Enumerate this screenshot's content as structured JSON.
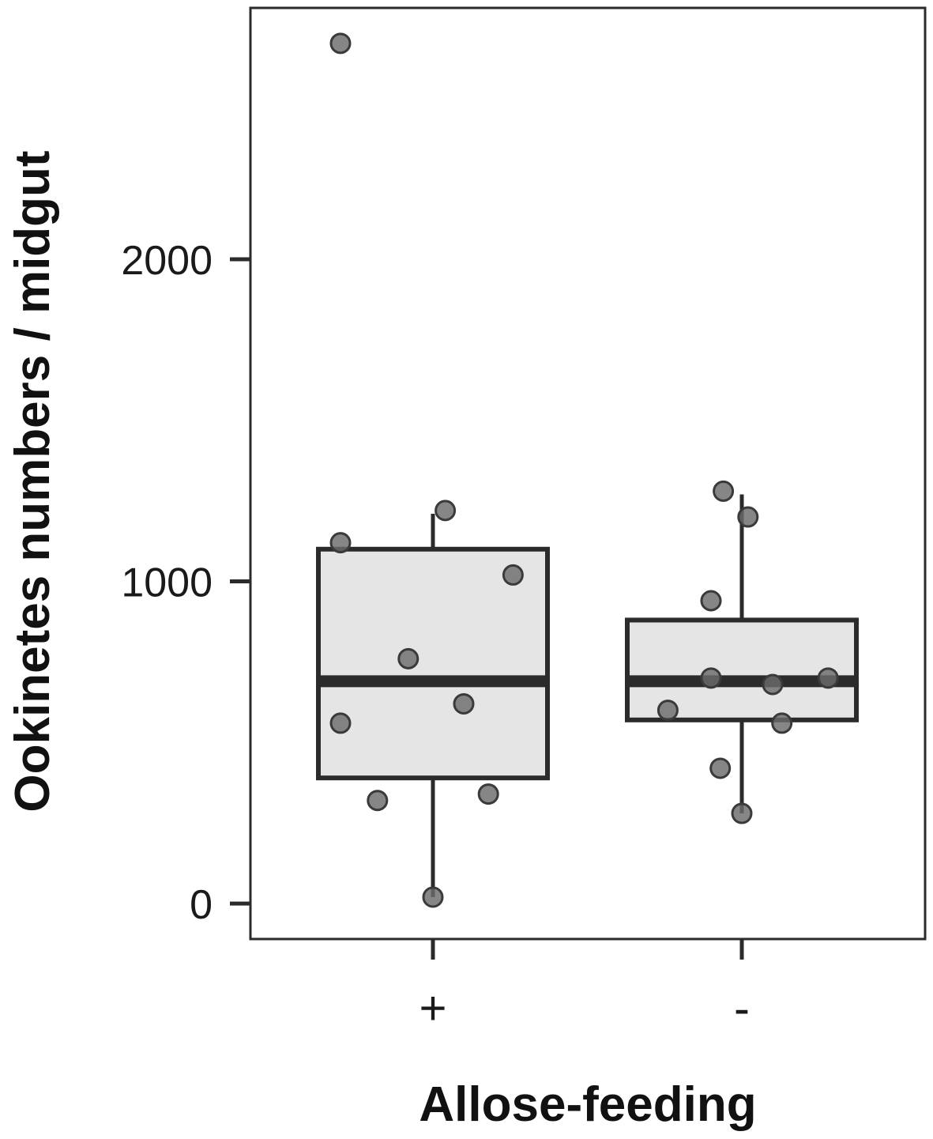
{
  "chart_data": {
    "type": "box",
    "xlabel": "Allose-feeding",
    "ylabel": "Ookinetes numbers / midgut",
    "categories": [
      "+",
      "-"
    ],
    "ylim": [
      -110,
      2780
    ],
    "yticks": [
      0,
      1000,
      2000
    ],
    "grid": false,
    "legend": "none",
    "boxes": [
      {
        "category": "+",
        "whisker_low": 20,
        "q1": 390,
        "median": 690,
        "q3": 1100,
        "whisker_high": 1210
      },
      {
        "category": "-",
        "whisker_low": 280,
        "q1": 570,
        "median": 690,
        "q3": 880,
        "whisker_high": 1270
      }
    ],
    "points": [
      {
        "category": "+",
        "jitter": -0.3,
        "y": 2670
      },
      {
        "category": "+",
        "jitter": 0.04,
        "y": 1220
      },
      {
        "category": "+",
        "jitter": -0.3,
        "y": 1120
      },
      {
        "category": "+",
        "jitter": 0.26,
        "y": 1020
      },
      {
        "category": "+",
        "jitter": -0.08,
        "y": 760
      },
      {
        "category": "+",
        "jitter": 0.1,
        "y": 620
      },
      {
        "category": "+",
        "jitter": -0.3,
        "y": 560
      },
      {
        "category": "+",
        "jitter": -0.18,
        "y": 320
      },
      {
        "category": "+",
        "jitter": 0.18,
        "y": 340
      },
      {
        "category": "+",
        "jitter": 0.0,
        "y": 20
      },
      {
        "category": "-",
        "jitter": -0.06,
        "y": 1280
      },
      {
        "category": "-",
        "jitter": 0.02,
        "y": 1200
      },
      {
        "category": "-",
        "jitter": -0.1,
        "y": 940
      },
      {
        "category": "-",
        "jitter": -0.1,
        "y": 700
      },
      {
        "category": "-",
        "jitter": 0.1,
        "y": 680
      },
      {
        "category": "-",
        "jitter": 0.28,
        "y": 700
      },
      {
        "category": "-",
        "jitter": -0.24,
        "y": 600
      },
      {
        "category": "-",
        "jitter": 0.13,
        "y": 560
      },
      {
        "category": "-",
        "jitter": -0.07,
        "y": 420
      },
      {
        "category": "-",
        "jitter": 0.0,
        "y": 280
      }
    ],
    "colors": {
      "box_fill": "#e5e5e5",
      "box_line": "#2b2b2b",
      "point_fill": "#6b6b6b",
      "point_stroke": "#3a3a3a",
      "axis": "#2b2b2b"
    }
  }
}
